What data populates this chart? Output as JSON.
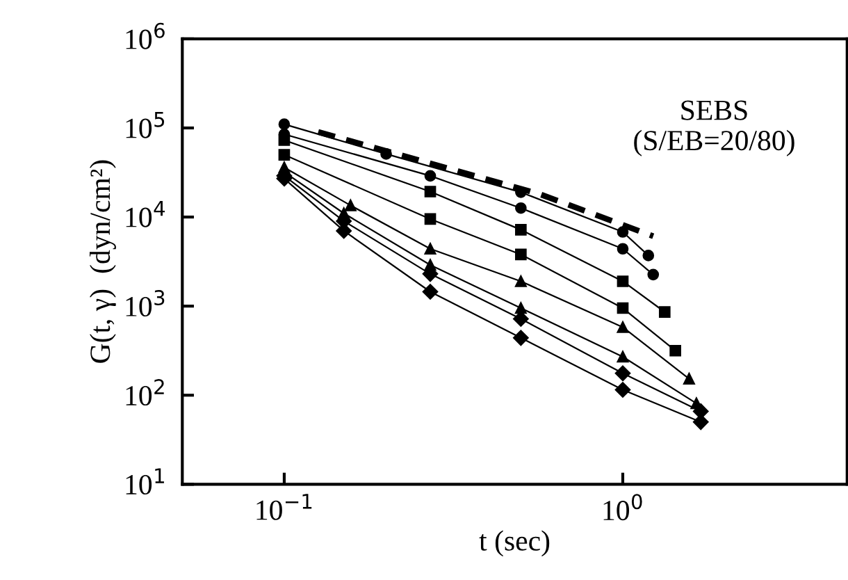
{
  "chart_data": {
    "type": "line",
    "xlabel": "t (sec)",
    "ylabel": "G(t, γ)  (dyn/cm²)",
    "log": "xy",
    "xlim": [
      0.05,
      4.6
    ],
    "ylim": [
      10,
      1000000
    ],
    "xticks": [
      {
        "value": 0.1,
        "label": "10$^{−1}$"
      },
      {
        "value": 1,
        "label": "10$^{0}$"
      }
    ],
    "yticks": [
      {
        "value": 10,
        "label": "10$^{1}$"
      },
      {
        "value": 100,
        "label": "10$^{2}$"
      },
      {
        "value": 1000,
        "label": "10$^{3}$"
      },
      {
        "value": 10000,
        "label": "10$^{4}$"
      },
      {
        "value": 100000,
        "label": "10$^{5}$"
      },
      {
        "value": 1000000,
        "label": "10$^{6}$"
      }
    ],
    "grid": false,
    "legend": false,
    "annotations": [
      "SEBS\n(S/EB=20/80)"
    ],
    "series": [
      {
        "color": "#000000",
        "marker": "none",
        "line_style": "dashed",
        "x": [
          0.126,
          0.219,
          0.57,
          1.23
        ],
        "values": [
          90000,
          50000,
          18000,
          6100
        ]
      },
      {
        "color": "#000000",
        "marker": "circle",
        "line_style": "solid",
        "x": [
          0.1,
          0.2,
          0.5,
          1.0,
          1.19
        ],
        "values": [
          110000,
          51000,
          19000,
          6800,
          3700
        ]
      },
      {
        "color": "#000000",
        "marker": "circle",
        "line_style": "solid",
        "x": [
          0.1,
          0.27,
          0.5,
          1.0,
          1.23
        ],
        "values": [
          85000,
          29000,
          12600,
          4400,
          2260
        ]
      },
      {
        "color": "#000000",
        "marker": "square",
        "line_style": "solid",
        "x": [
          0.1,
          0.27,
          0.5,
          1.0,
          1.33
        ],
        "values": [
          73000,
          19300,
          7200,
          1900,
          860
        ]
      },
      {
        "color": "#000000",
        "marker": "square",
        "line_style": "solid",
        "x": [
          0.1,
          0.27,
          0.5,
          1.0,
          1.43
        ],
        "values": [
          50000,
          9500,
          3800,
          950,
          316
        ]
      },
      {
        "color": "#000000",
        "marker": "triangle",
        "line_style": "solid",
        "x": [
          0.1,
          0.157,
          0.27,
          0.5,
          1.0,
          1.57
        ],
        "values": [
          36000,
          13500,
          4400,
          1900,
          580,
          153
        ]
      },
      {
        "color": "#000000",
        "marker": "triangle",
        "line_style": "solid",
        "x": [
          0.1,
          0.15,
          0.27,
          0.5,
          1.0,
          1.65
        ],
        "values": [
          32000,
          11000,
          2900,
          950,
          270,
          81
        ]
      },
      {
        "color": "#000000",
        "marker": "diamond",
        "line_style": "solid",
        "x": [
          0.1,
          0.15,
          0.27,
          0.5,
          1.0,
          1.7
        ],
        "values": [
          29000,
          9000,
          2300,
          720,
          176,
          66
        ]
      },
      {
        "color": "#000000",
        "marker": "diamond",
        "line_style": "solid",
        "x": [
          0.1,
          0.15,
          0.27,
          0.5,
          1.0,
          1.7
        ],
        "values": [
          27000,
          7000,
          1450,
          440,
          115,
          50
        ]
      }
    ]
  }
}
